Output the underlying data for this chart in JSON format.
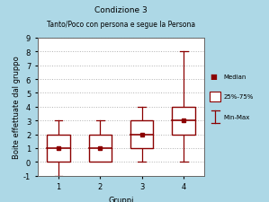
{
  "title_line1": "Condizione 3",
  "title_line2": "Tanto/Poco con persona e segue la Persona",
  "xlabel": "Gruppi",
  "ylabel": "Boite effettuate dal gruppo",
  "groups": [
    1,
    2,
    3,
    4
  ],
  "medians": [
    1,
    1,
    2,
    3
  ],
  "q1": [
    0,
    0,
    1,
    2
  ],
  "q3": [
    2,
    2,
    3,
    4
  ],
  "whisker_low": [
    -1,
    0,
    0,
    0
  ],
  "whisker_high": [
    3,
    3,
    4,
    8
  ],
  "ylim": [
    -1,
    9
  ],
  "yticks": [
    -1,
    0,
    1,
    2,
    3,
    4,
    5,
    6,
    7,
    8,
    9
  ],
  "box_color": "#8B0000",
  "bg_outer": "#add8e6",
  "bg_inner": "#ffffff",
  "grid_color": "#b0b0b0",
  "title_fontsize": 6.5,
  "subtitle_fontsize": 5.5,
  "label_fontsize": 6,
  "tick_fontsize": 6,
  "legend_fontsize": 5
}
